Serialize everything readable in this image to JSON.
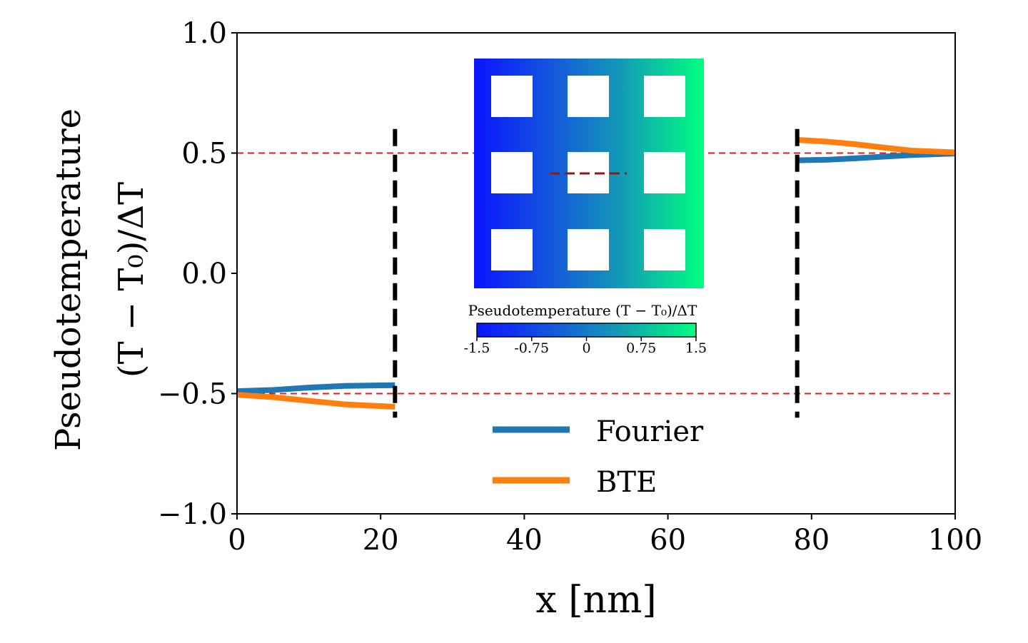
{
  "chart_data": {
    "type": "line",
    "xlabel": "x [nm]",
    "ylabel_lines": [
      "Pseudotemperature",
      "(T − T₀)/ΔT"
    ],
    "xlim": [
      0,
      100
    ],
    "ylim": [
      -1.0,
      1.0
    ],
    "x_ticks": [
      0,
      20,
      40,
      60,
      80,
      100
    ],
    "x_tick_labels": [
      "0",
      "20",
      "40",
      "60",
      "80",
      "100"
    ],
    "y_ticks": [
      1.0,
      0.5,
      0.0,
      -0.5,
      -1.0
    ],
    "y_tick_labels": [
      "1.0",
      "0.5",
      "0.0",
      "−0.5",
      "−1.0"
    ],
    "grid": false,
    "legend_position": "lower-center",
    "series": [
      {
        "name": "Fourier",
        "color": "#1f77b4",
        "segments": [
          {
            "x": [
              0,
              5,
              10,
              15,
              22
            ],
            "y": [
              -0.49,
              -0.485,
              -0.475,
              -0.468,
              -0.465
            ]
          },
          {
            "x": [
              78,
              82,
              86,
              90,
              94,
              100
            ],
            "y": [
              0.47,
              0.472,
              0.478,
              0.485,
              0.492,
              0.498
            ]
          }
        ]
      },
      {
        "name": "BTE",
        "color": "#ff7f0e",
        "segments": [
          {
            "x": [
              0,
              5,
              10,
              15,
              22
            ],
            "y": [
              -0.505,
              -0.515,
              -0.53,
              -0.545,
              -0.555
            ]
          },
          {
            "x": [
              78,
              82,
              86,
              90,
              94,
              100
            ],
            "y": [
              0.555,
              0.548,
              0.537,
              0.523,
              0.51,
              0.503
            ]
          }
        ]
      }
    ],
    "reference_lines": [
      {
        "y": 0.5,
        "color": "#e41a1c",
        "style": "dashed"
      },
      {
        "y": -0.5,
        "color": "#e41a1c",
        "style": "dashed"
      }
    ],
    "boundary_lines": [
      {
        "x": 22,
        "y_range": [
          -0.6,
          0.6
        ],
        "color": "#000000",
        "style": "dashed"
      },
      {
        "x": 78,
        "y_range": [
          -0.6,
          0.6
        ],
        "color": "#000000",
        "style": "dashed"
      }
    ],
    "inset": {
      "type": "heatmap",
      "grid_holes": "3x3",
      "colormap": [
        "#0a14ff",
        "#1455dd",
        "#139fb4",
        "#00ff80"
      ],
      "cross_section_color": "#8b1a1a",
      "colorbar": {
        "title": "Pseudotemperature (T − T₀)/ΔT",
        "range": [
          -1.5,
          1.5
        ],
        "ticks": [
          -1.5,
          -0.75,
          0,
          0.75,
          1.5
        ],
        "tick_labels": [
          "-1.5",
          "-0.75",
          "0",
          "0.75",
          "1.5"
        ]
      }
    }
  }
}
